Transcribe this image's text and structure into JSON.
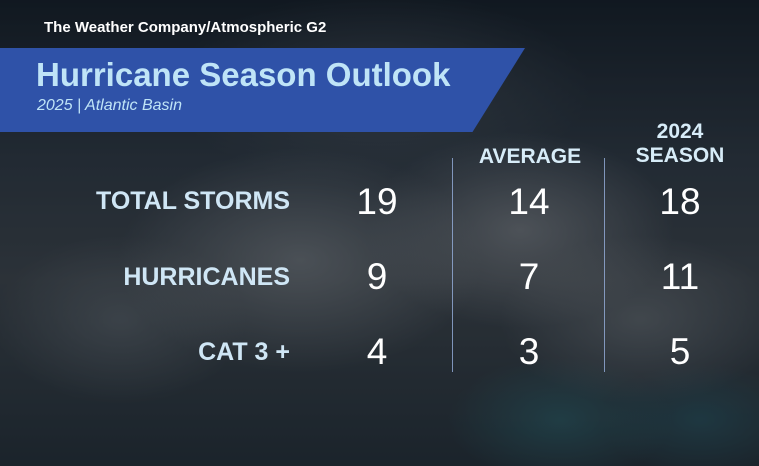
{
  "header": {
    "source": "The Weather Company/Atmospheric G2",
    "title": "Hurricane Season Outlook",
    "subtitle": "2025 | Atlantic Basin"
  },
  "colors": {
    "banner": "#2f52a8",
    "title": "#bfe4f7",
    "label": "#cfe6f5",
    "value": "#ffffff",
    "divider": "#96afdc"
  },
  "table": {
    "columns": [
      {
        "label": ""
      },
      {
        "label": "AVERAGE"
      },
      {
        "label": "2024\nSEASON"
      }
    ],
    "rows": [
      {
        "label": "TOTAL STORMS",
        "values": [
          "19",
          "14",
          "18"
        ]
      },
      {
        "label": "HURRICANES",
        "values": [
          "9",
          "7",
          "11"
        ]
      },
      {
        "label": "CAT 3 +",
        "values": [
          "4",
          "3",
          "5"
        ]
      }
    ]
  }
}
